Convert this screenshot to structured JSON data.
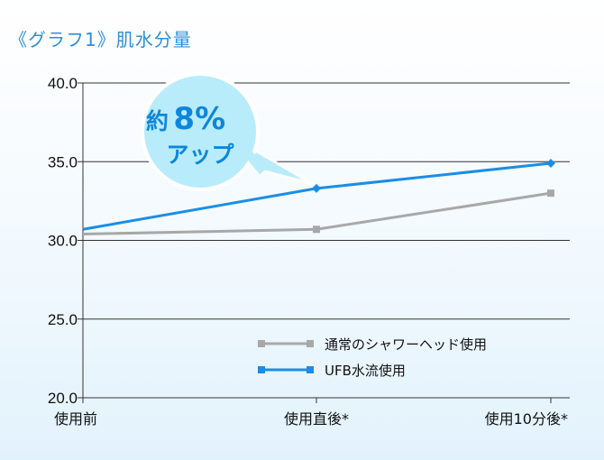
{
  "title": "《グラフ1》肌水分量",
  "colors": {
    "title": "#2e8fd8",
    "normal": "#a8a8a8",
    "ufb": "#1a8ee6",
    "callout_fill": "#b9ecfa",
    "callout_text": "#0d86dc"
  },
  "callout": {
    "line1_prefix": "約",
    "line1_value": "8%",
    "line2": "アップ"
  },
  "chart_data": {
    "type": "line",
    "title": "《グラフ1》肌水分量",
    "categories": [
      "使用前",
      "使用直後*",
      "使用10分後*"
    ],
    "y_ticks": [
      "20.0",
      "25.0",
      "30.0",
      "35.0",
      "40.0"
    ],
    "ylim": [
      20,
      40
    ],
    "grid": true,
    "legend_position": "lower-right",
    "series": [
      {
        "name": "通常のシャワーヘッド使用",
        "values": [
          30.4,
          30.7,
          33.0
        ],
        "color": "#a8a8a8",
        "marker": "square"
      },
      {
        "name": "UFB水流使用",
        "values": [
          30.7,
          33.3,
          34.9
        ],
        "color": "#1a8ee6",
        "marker": "diamond"
      }
    ]
  }
}
